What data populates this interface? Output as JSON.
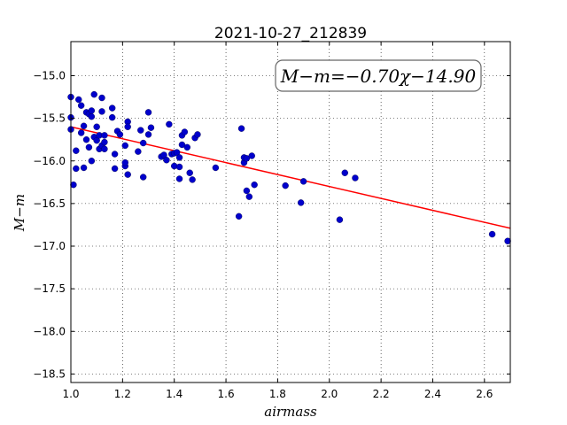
{
  "chart_data": {
    "type": "scatter",
    "title": "2021-10-27_212839",
    "xlabel": "airmass",
    "ylabel": "M−m",
    "xlim": [
      1.0,
      2.7
    ],
    "ylim": [
      -18.6,
      -14.6
    ],
    "x_ticks": [
      1.0,
      1.2,
      1.4,
      1.6,
      1.8,
      2.0,
      2.2,
      2.4,
      2.6
    ],
    "y_ticks": [
      -15.0,
      -15.5,
      -16.0,
      -16.5,
      -17.0,
      -17.5,
      -18.0,
      -18.5
    ],
    "x_tick_labels": [
      "1.0",
      "1.2",
      "1.4",
      "1.6",
      "1.8",
      "2.0",
      "2.2",
      "2.4",
      "2.6"
    ],
    "y_tick_labels": [
      "−15.0",
      "−15.5",
      "−16.0",
      "−16.5",
      "−17.0",
      "−17.5",
      "−18.0",
      "−18.5"
    ],
    "grid": true,
    "annotation": "M−m=−0.70χ−14.90",
    "fit": {
      "slope": -0.7,
      "intercept": -14.9,
      "color": "#ff0000"
    },
    "marker_color": "#0000cc",
    "points": [
      [
        1.0,
        -15.25
      ],
      [
        1.0,
        -15.49
      ],
      [
        1.0,
        -15.63
      ],
      [
        1.01,
        -16.28
      ],
      [
        1.02,
        -15.88
      ],
      [
        1.02,
        -16.09
      ],
      [
        1.03,
        -15.28
      ],
      [
        1.04,
        -15.67
      ],
      [
        1.04,
        -15.35
      ],
      [
        1.05,
        -15.59
      ],
      [
        1.05,
        -16.08
      ],
      [
        1.06,
        -15.75
      ],
      [
        1.06,
        -15.43
      ],
      [
        1.07,
        -15.45
      ],
      [
        1.07,
        -15.84
      ],
      [
        1.08,
        -15.48
      ],
      [
        1.08,
        -15.41
      ],
      [
        1.08,
        -16.0
      ],
      [
        1.09,
        -15.72
      ],
      [
        1.09,
        -15.22
      ],
      [
        1.1,
        -15.6
      ],
      [
        1.1,
        -15.76
      ],
      [
        1.11,
        -15.86
      ],
      [
        1.11,
        -15.7
      ],
      [
        1.12,
        -15.26
      ],
      [
        1.12,
        -15.42
      ],
      [
        1.12,
        -15.82
      ],
      [
        1.13,
        -15.78
      ],
      [
        1.13,
        -15.86
      ],
      [
        1.13,
        -15.7
      ],
      [
        1.16,
        -15.38
      ],
      [
        1.16,
        -15.49
      ],
      [
        1.17,
        -16.09
      ],
      [
        1.17,
        -15.92
      ],
      [
        1.18,
        -15.65
      ],
      [
        1.19,
        -15.69
      ],
      [
        1.21,
        -16.06
      ],
      [
        1.21,
        -16.02
      ],
      [
        1.21,
        -15.82
      ],
      [
        1.22,
        -15.54
      ],
      [
        1.22,
        -16.16
      ],
      [
        1.22,
        -15.6
      ],
      [
        1.26,
        -15.89
      ],
      [
        1.27,
        -15.64
      ],
      [
        1.28,
        -15.79
      ],
      [
        1.28,
        -16.19
      ],
      [
        1.3,
        -15.43
      ],
      [
        1.3,
        -15.69
      ],
      [
        1.31,
        -15.61
      ],
      [
        1.35,
        -15.95
      ],
      [
        1.36,
        -15.93
      ],
      [
        1.37,
        -15.99
      ],
      [
        1.38,
        -15.57
      ],
      [
        1.39,
        -15.92
      ],
      [
        1.4,
        -16.06
      ],
      [
        1.4,
        -15.91
      ],
      [
        1.41,
        -15.9
      ],
      [
        1.42,
        -16.21
      ],
      [
        1.42,
        -15.96
      ],
      [
        1.42,
        -16.07
      ],
      [
        1.43,
        -15.81
      ],
      [
        1.43,
        -15.7
      ],
      [
        1.44,
        -15.66
      ],
      [
        1.45,
        -15.84
      ],
      [
        1.46,
        -16.14
      ],
      [
        1.47,
        -16.22
      ],
      [
        1.48,
        -15.73
      ],
      [
        1.49,
        -15.69
      ],
      [
        1.56,
        -16.08
      ],
      [
        1.65,
        -16.65
      ],
      [
        1.66,
        -15.62
      ],
      [
        1.67,
        -16.02
      ],
      [
        1.67,
        -15.96
      ],
      [
        1.68,
        -16.35
      ],
      [
        1.68,
        -15.97
      ],
      [
        1.69,
        -16.42
      ],
      [
        1.7,
        -15.94
      ],
      [
        1.71,
        -16.28
      ],
      [
        1.83,
        -16.29
      ],
      [
        1.89,
        -16.49
      ],
      [
        1.9,
        -16.24
      ],
      [
        2.04,
        -16.69
      ],
      [
        2.06,
        -16.14
      ],
      [
        2.1,
        -16.2
      ],
      [
        2.63,
        -16.86
      ],
      [
        2.69,
        -16.94
      ]
    ]
  }
}
